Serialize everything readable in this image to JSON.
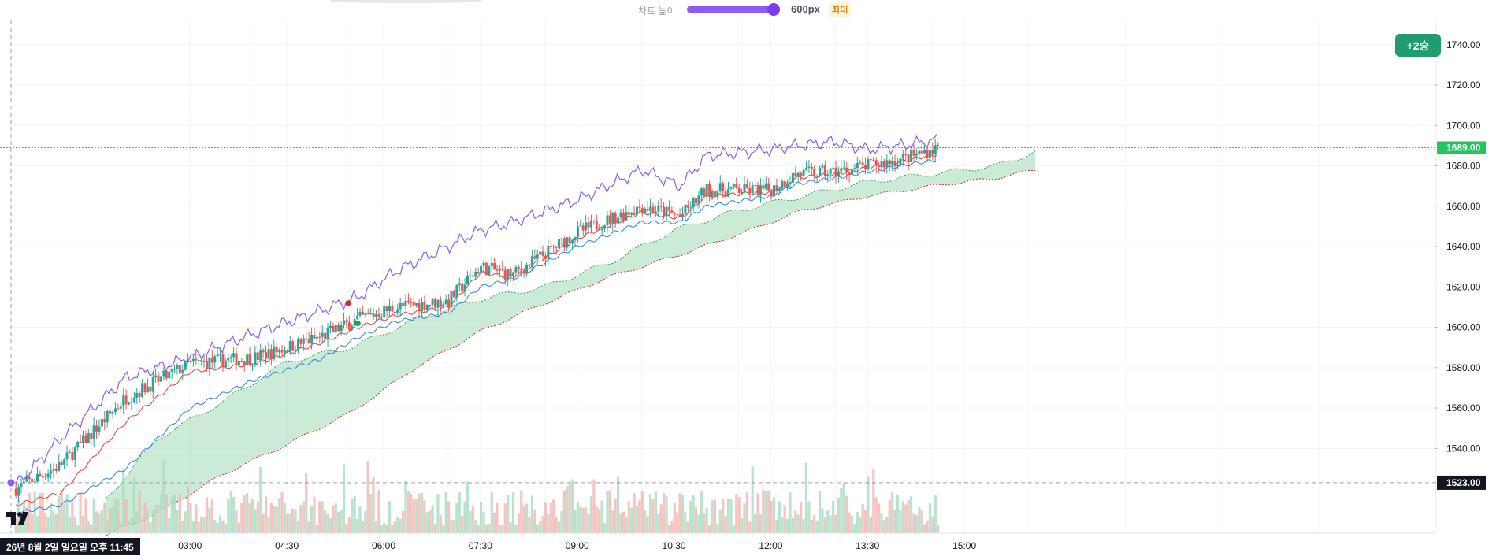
{
  "topbar": {
    "height_label": "차트 높이",
    "height_value": "600px",
    "max_badge": "최대",
    "slider_fraction": 1.0
  },
  "badges": {
    "win": "+2승"
  },
  "crosshair": {
    "date_label": "26년 8월 2일 일요일 오후 11:45",
    "price_label": "1523.00"
  },
  "colors": {
    "up": "#26a69a",
    "down": "#ef5350",
    "purple": "#8b5cf6",
    "blue": "#2f7fe0",
    "red_line": "#e53935",
    "cloud": "#b9e4c9",
    "cloud_edge": "#c62828",
    "last_price": "#22c55e",
    "crosshair_bg": "#131722"
  },
  "icons": {
    "logo": "tradingview-logo-icon",
    "signal_sell": "red-dot-icon",
    "signal_buy": "green-dot-icon"
  },
  "chart_data": {
    "type": "candlestick",
    "title": "",
    "ylim": [
      1498,
      1752
    ],
    "x_tick_labels": [
      "03:00",
      "04:30",
      "06:00",
      "07:30",
      "09:00",
      "10:30",
      "12:00",
      "13:30",
      "15:00"
    ],
    "x_tick_hours": [
      3,
      4.5,
      6,
      7.5,
      9,
      10.5,
      12,
      13.5,
      15
    ],
    "xlim_hours": [
      0.2,
      22.3
    ],
    "y_ticks": [
      1540,
      1560,
      1580,
      1600,
      1620,
      1640,
      1660,
      1680,
      1700,
      1720,
      1740
    ],
    "y_tick_labels": [
      "1540.00",
      "1560.00",
      "1580.00",
      "1600.00",
      "1620.00",
      "1640.00",
      "1660.00",
      "1680.00",
      "1700.00",
      "1720.00",
      "1740.00"
    ],
    "last_price": 1689,
    "last_price_label": "1689.00",
    "crosshair_price": 1523,
    "grid": true,
    "price_path": {
      "hours": [
        0.3,
        1.0,
        2.0,
        3.0,
        4.0,
        5.0,
        5.6,
        6.2,
        7.0,
        7.5,
        8.0,
        9.0,
        10.0,
        10.6,
        11.0,
        12.0,
        12.4,
        13.0,
        14.0,
        14.6
      ],
      "values": [
        1520,
        1532,
        1565,
        1582,
        1585,
        1595,
        1604,
        1610,
        1613,
        1630,
        1626,
        1647,
        1660,
        1655,
        1668,
        1668,
        1676,
        1677,
        1683,
        1689
      ]
    },
    "series": [
      {
        "key": "upper_band",
        "hours": [
          0.3,
          1.0,
          2.0,
          3.0,
          4.0,
          5.0,
          5.6,
          6.2,
          7.0,
          7.5,
          8.0,
          9.0,
          10.0,
          10.6,
          11.0,
          12.0,
          12.4,
          13.0,
          13.5,
          14.0,
          14.6
        ],
        "values": [
          1522,
          1545,
          1575,
          1585,
          1597,
          1608,
          1615,
          1628,
          1640,
          1648,
          1652,
          1663,
          1678,
          1670,
          1685,
          1688,
          1690,
          1692,
          1688,
          1690,
          1693
        ]
      },
      {
        "key": "fast_line",
        "hours": [
          0.3,
          1.0,
          2.0,
          3.0,
          4.0,
          5.0,
          5.6,
          6.2,
          7.0,
          7.5,
          8.0,
          9.0,
          10.0,
          10.6,
          11.0,
          12.0,
          12.4,
          13.0,
          14.0,
          14.6
        ],
        "values": [
          1512,
          1518,
          1553,
          1578,
          1582,
          1592,
          1600,
          1606,
          1610,
          1627,
          1625,
          1644,
          1657,
          1654,
          1665,
          1667,
          1674,
          1676,
          1682,
          1686
        ]
      },
      {
        "key": "slow_line",
        "hours": [
          0.3,
          1.0,
          2.0,
          3.0,
          4.0,
          5.0,
          5.6,
          6.2,
          7.0,
          7.5,
          8.0,
          9.0,
          10.0,
          10.6,
          11.0,
          12.0,
          12.4,
          13.0,
          14.0,
          14.6
        ],
        "values": [
          1508,
          1512,
          1530,
          1560,
          1574,
          1584,
          1595,
          1603,
          1607,
          1620,
          1624,
          1640,
          1652,
          1652,
          1660,
          1665,
          1671,
          1674,
          1680,
          1683
        ]
      },
      {
        "key": "cloud_upper",
        "hours": [
          1.7,
          2.5,
          3.5,
          4.5,
          5.5,
          6.5,
          7.5,
          8.5,
          9.5,
          10.5,
          11.5,
          12.5,
          13.5,
          14.5,
          15.5,
          16.1
        ],
        "values": [
          1515,
          1545,
          1563,
          1583,
          1590,
          1604,
          1614,
          1620,
          1632,
          1648,
          1658,
          1665,
          1672,
          1676,
          1680,
          1687
        ]
      },
      {
        "key": "cloud_lower",
        "hours": [
          1.7,
          2.5,
          3.5,
          4.5,
          5.5,
          6.5,
          7.5,
          8.5,
          9.5,
          10.5,
          11.5,
          12.5,
          13.5,
          14.5,
          15.5,
          16.1
        ],
        "values": [
          1497,
          1508,
          1527,
          1542,
          1558,
          1580,
          1598,
          1612,
          1625,
          1635,
          1646,
          1658,
          1665,
          1670,
          1674,
          1678
        ]
      }
    ],
    "signals": [
      {
        "type": "sell",
        "hour": 5.45,
        "price": 1612
      },
      {
        "type": "buy",
        "hour": 5.6,
        "price": 1602
      }
    ],
    "volume_max_fraction": 1.0
  }
}
